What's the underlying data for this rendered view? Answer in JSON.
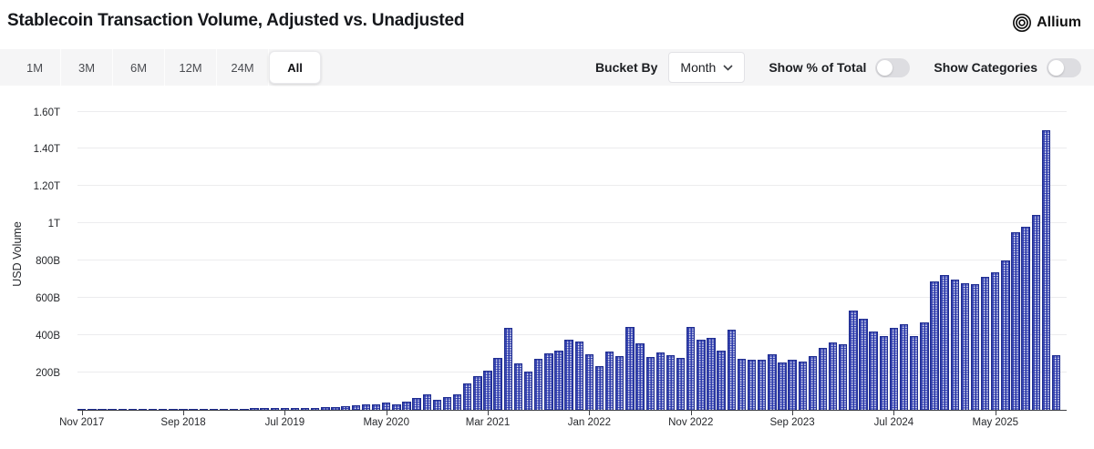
{
  "header": {
    "title": "Stablecoin Transaction Volume, Adjusted vs. Unadjusted",
    "brand": "Allium"
  },
  "controls": {
    "range_buttons": [
      "1M",
      "3M",
      "6M",
      "12M",
      "24M",
      "All"
    ],
    "active_range": "All",
    "bucket_by_label": "Bucket By",
    "bucket_value": "Month",
    "toggles": [
      {
        "label": "Show % of Total",
        "on": false
      },
      {
        "label": "Show Categories",
        "on": false
      }
    ]
  },
  "chart_data": {
    "type": "bar",
    "title": "Stablecoin Transaction Volume, Adjusted vs. Unadjusted",
    "xlabel": "",
    "ylabel": "USD Volume",
    "unit": "billions USD",
    "grid": true,
    "legend": "none",
    "bar_color": "#2c3aab",
    "ylim": [
      0,
      1600
    ],
    "y_ticks": [
      {
        "label": "200B",
        "value": 200
      },
      {
        "label": "400B",
        "value": 400
      },
      {
        "label": "600B",
        "value": 600
      },
      {
        "label": "800B",
        "value": 800
      },
      {
        "label": "1T",
        "value": 1000
      },
      {
        "label": "1.20T",
        "value": 1200
      },
      {
        "label": "1.40T",
        "value": 1400
      },
      {
        "label": "1.60T",
        "value": 1600
      }
    ],
    "x_tick_labels": [
      "Nov 2017",
      "Sep 2018",
      "Jul 2019",
      "May 2020",
      "Mar 2021",
      "Jan 2022",
      "Nov 2022",
      "Sep 2023",
      "Jul 2024",
      "May 2025"
    ],
    "x_tick_month_indices": [
      0,
      10,
      20,
      30,
      40,
      50,
      60,
      70,
      80,
      90
    ],
    "months": [
      "2017-11",
      "2017-12",
      "2018-01",
      "2018-02",
      "2018-03",
      "2018-04",
      "2018-05",
      "2018-06",
      "2018-07",
      "2018-08",
      "2018-09",
      "2018-10",
      "2018-11",
      "2018-12",
      "2019-01",
      "2019-02",
      "2019-03",
      "2019-04",
      "2019-05",
      "2019-06",
      "2019-07",
      "2019-08",
      "2019-09",
      "2019-10",
      "2019-11",
      "2019-12",
      "2020-01",
      "2020-02",
      "2020-03",
      "2020-04",
      "2020-05",
      "2020-06",
      "2020-07",
      "2020-08",
      "2020-09",
      "2020-10",
      "2020-11",
      "2020-12",
      "2021-01",
      "2021-02",
      "2021-03",
      "2021-04",
      "2021-05",
      "2021-06",
      "2021-07",
      "2021-08",
      "2021-09",
      "2021-10",
      "2021-11",
      "2021-12",
      "2022-01",
      "2022-02",
      "2022-03",
      "2022-04",
      "2022-05",
      "2022-06",
      "2022-07",
      "2022-08",
      "2022-09",
      "2022-10",
      "2022-11",
      "2022-12",
      "2023-01",
      "2023-02",
      "2023-03",
      "2023-04",
      "2023-05",
      "2023-06",
      "2023-07",
      "2023-08",
      "2023-09",
      "2023-10",
      "2023-11",
      "2023-12",
      "2024-01",
      "2024-02",
      "2024-03",
      "2024-04",
      "2024-05",
      "2024-06",
      "2024-07",
      "2024-08",
      "2024-09",
      "2024-10",
      "2024-11",
      "2024-12",
      "2025-01",
      "2025-02",
      "2025-03",
      "2025-04",
      "2025-05",
      "2025-06",
      "2025-07",
      "2025-08",
      "2025-09",
      "2025-10",
      "2025-11"
    ],
    "values": [
      1,
      1,
      1,
      1,
      1,
      1,
      1,
      2,
      2,
      2,
      3,
      3,
      4,
      4,
      4,
      5,
      6,
      8,
      10,
      12,
      12,
      12,
      12,
      12,
      13,
      14,
      20,
      24,
      30,
      28,
      37,
      28,
      46,
      65,
      82,
      56,
      69,
      85,
      142,
      183,
      212,
      280,
      440,
      248,
      207,
      272,
      305,
      316,
      378,
      365,
      300,
      235,
      313,
      289,
      446,
      359,
      284,
      307,
      294,
      277,
      446,
      378,
      386,
      316,
      430,
      272,
      267,
      267,
      300,
      256,
      267,
      260,
      290,
      330,
      360,
      350,
      533,
      487,
      419,
      398,
      438,
      459,
      398,
      471,
      687,
      724,
      700,
      680,
      675,
      711,
      740,
      800,
      952,
      984,
      1045,
      1500,
      292
    ]
  }
}
